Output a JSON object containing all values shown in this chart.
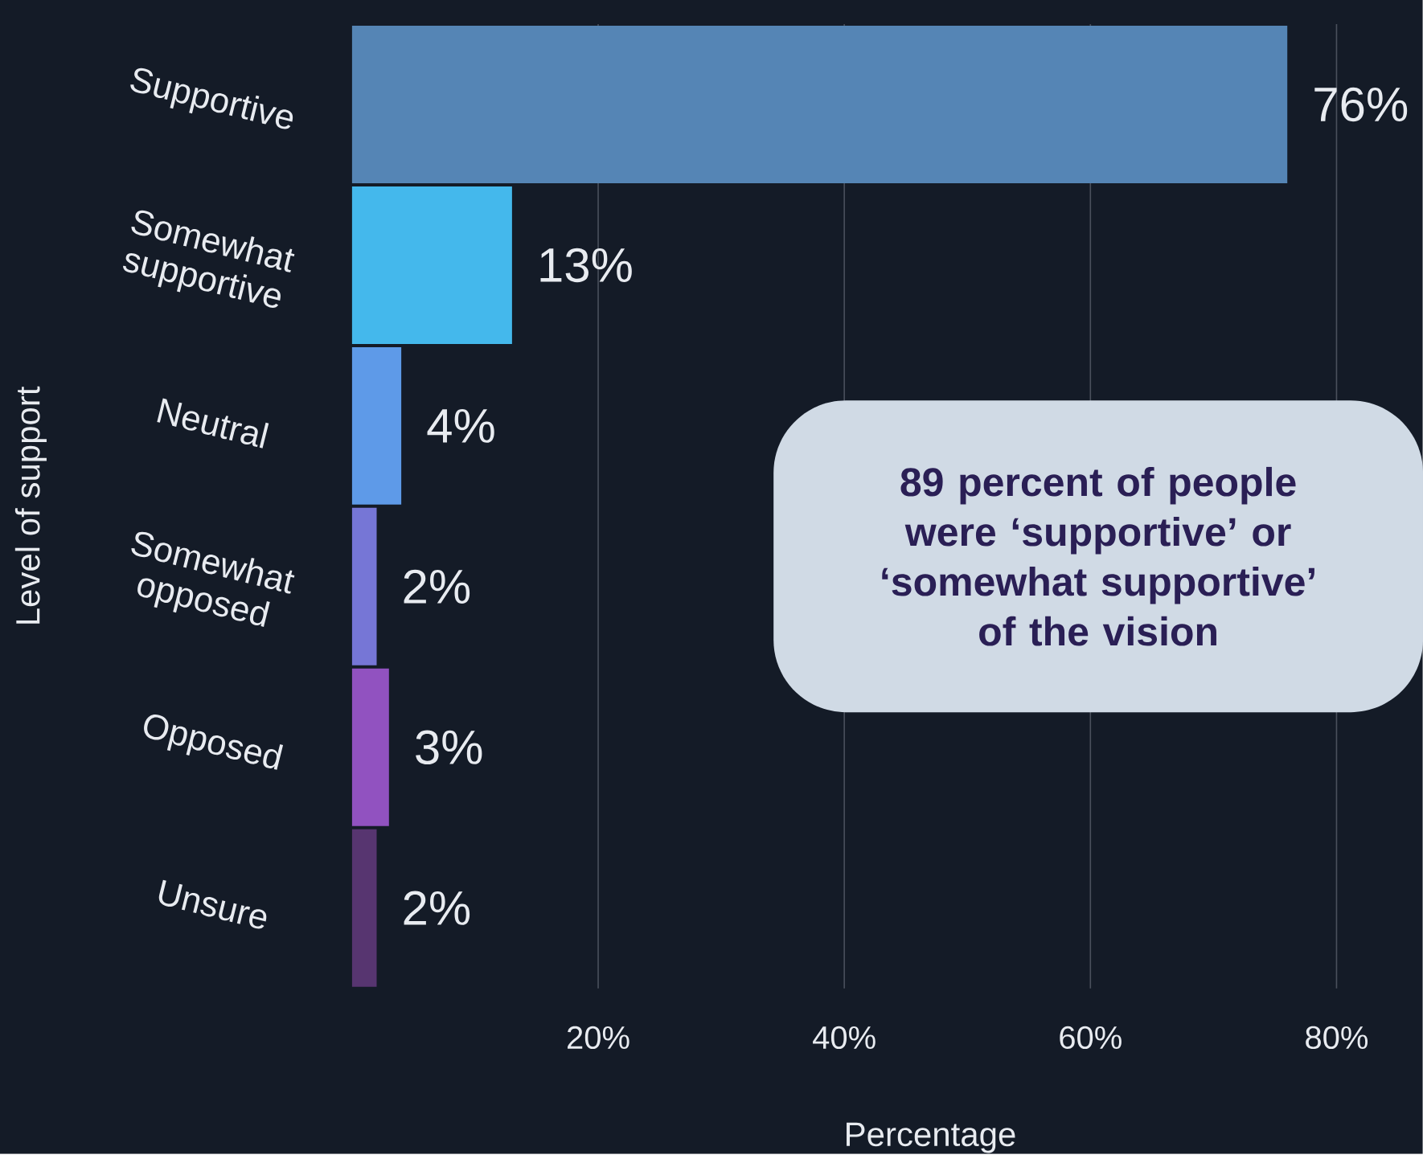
{
  "chart_data": {
    "type": "bar",
    "orientation": "horizontal",
    "xlabel": "Percentage",
    "ylabel": "Level of support",
    "categories": [
      "Supportive",
      "Somewhat supportive",
      "Neutral",
      "Somewhat opposed",
      "Opposed",
      "Unsure"
    ],
    "values": [
      76,
      13,
      4,
      2,
      3,
      2
    ],
    "colors": [
      "#5585b5",
      "#44b8ec",
      "#5e9ae8",
      "#7676d6",
      "#9152c0",
      "#573570"
    ],
    "value_labels": [
      "76%",
      "13%",
      "4%",
      "2%",
      "3%",
      "2%"
    ],
    "xlim": [
      0,
      87
    ],
    "xticks": [
      {
        "value": 20,
        "label": "20%"
      },
      {
        "value": 40,
        "label": "40%"
      },
      {
        "value": 60,
        "label": "60%"
      },
      {
        "value": 80,
        "label": "80%"
      }
    ],
    "grid": "x",
    "annotations": [
      "89 percent of people were ‘supportive’ or ‘somewhat supportive’ of the vision"
    ]
  }
}
